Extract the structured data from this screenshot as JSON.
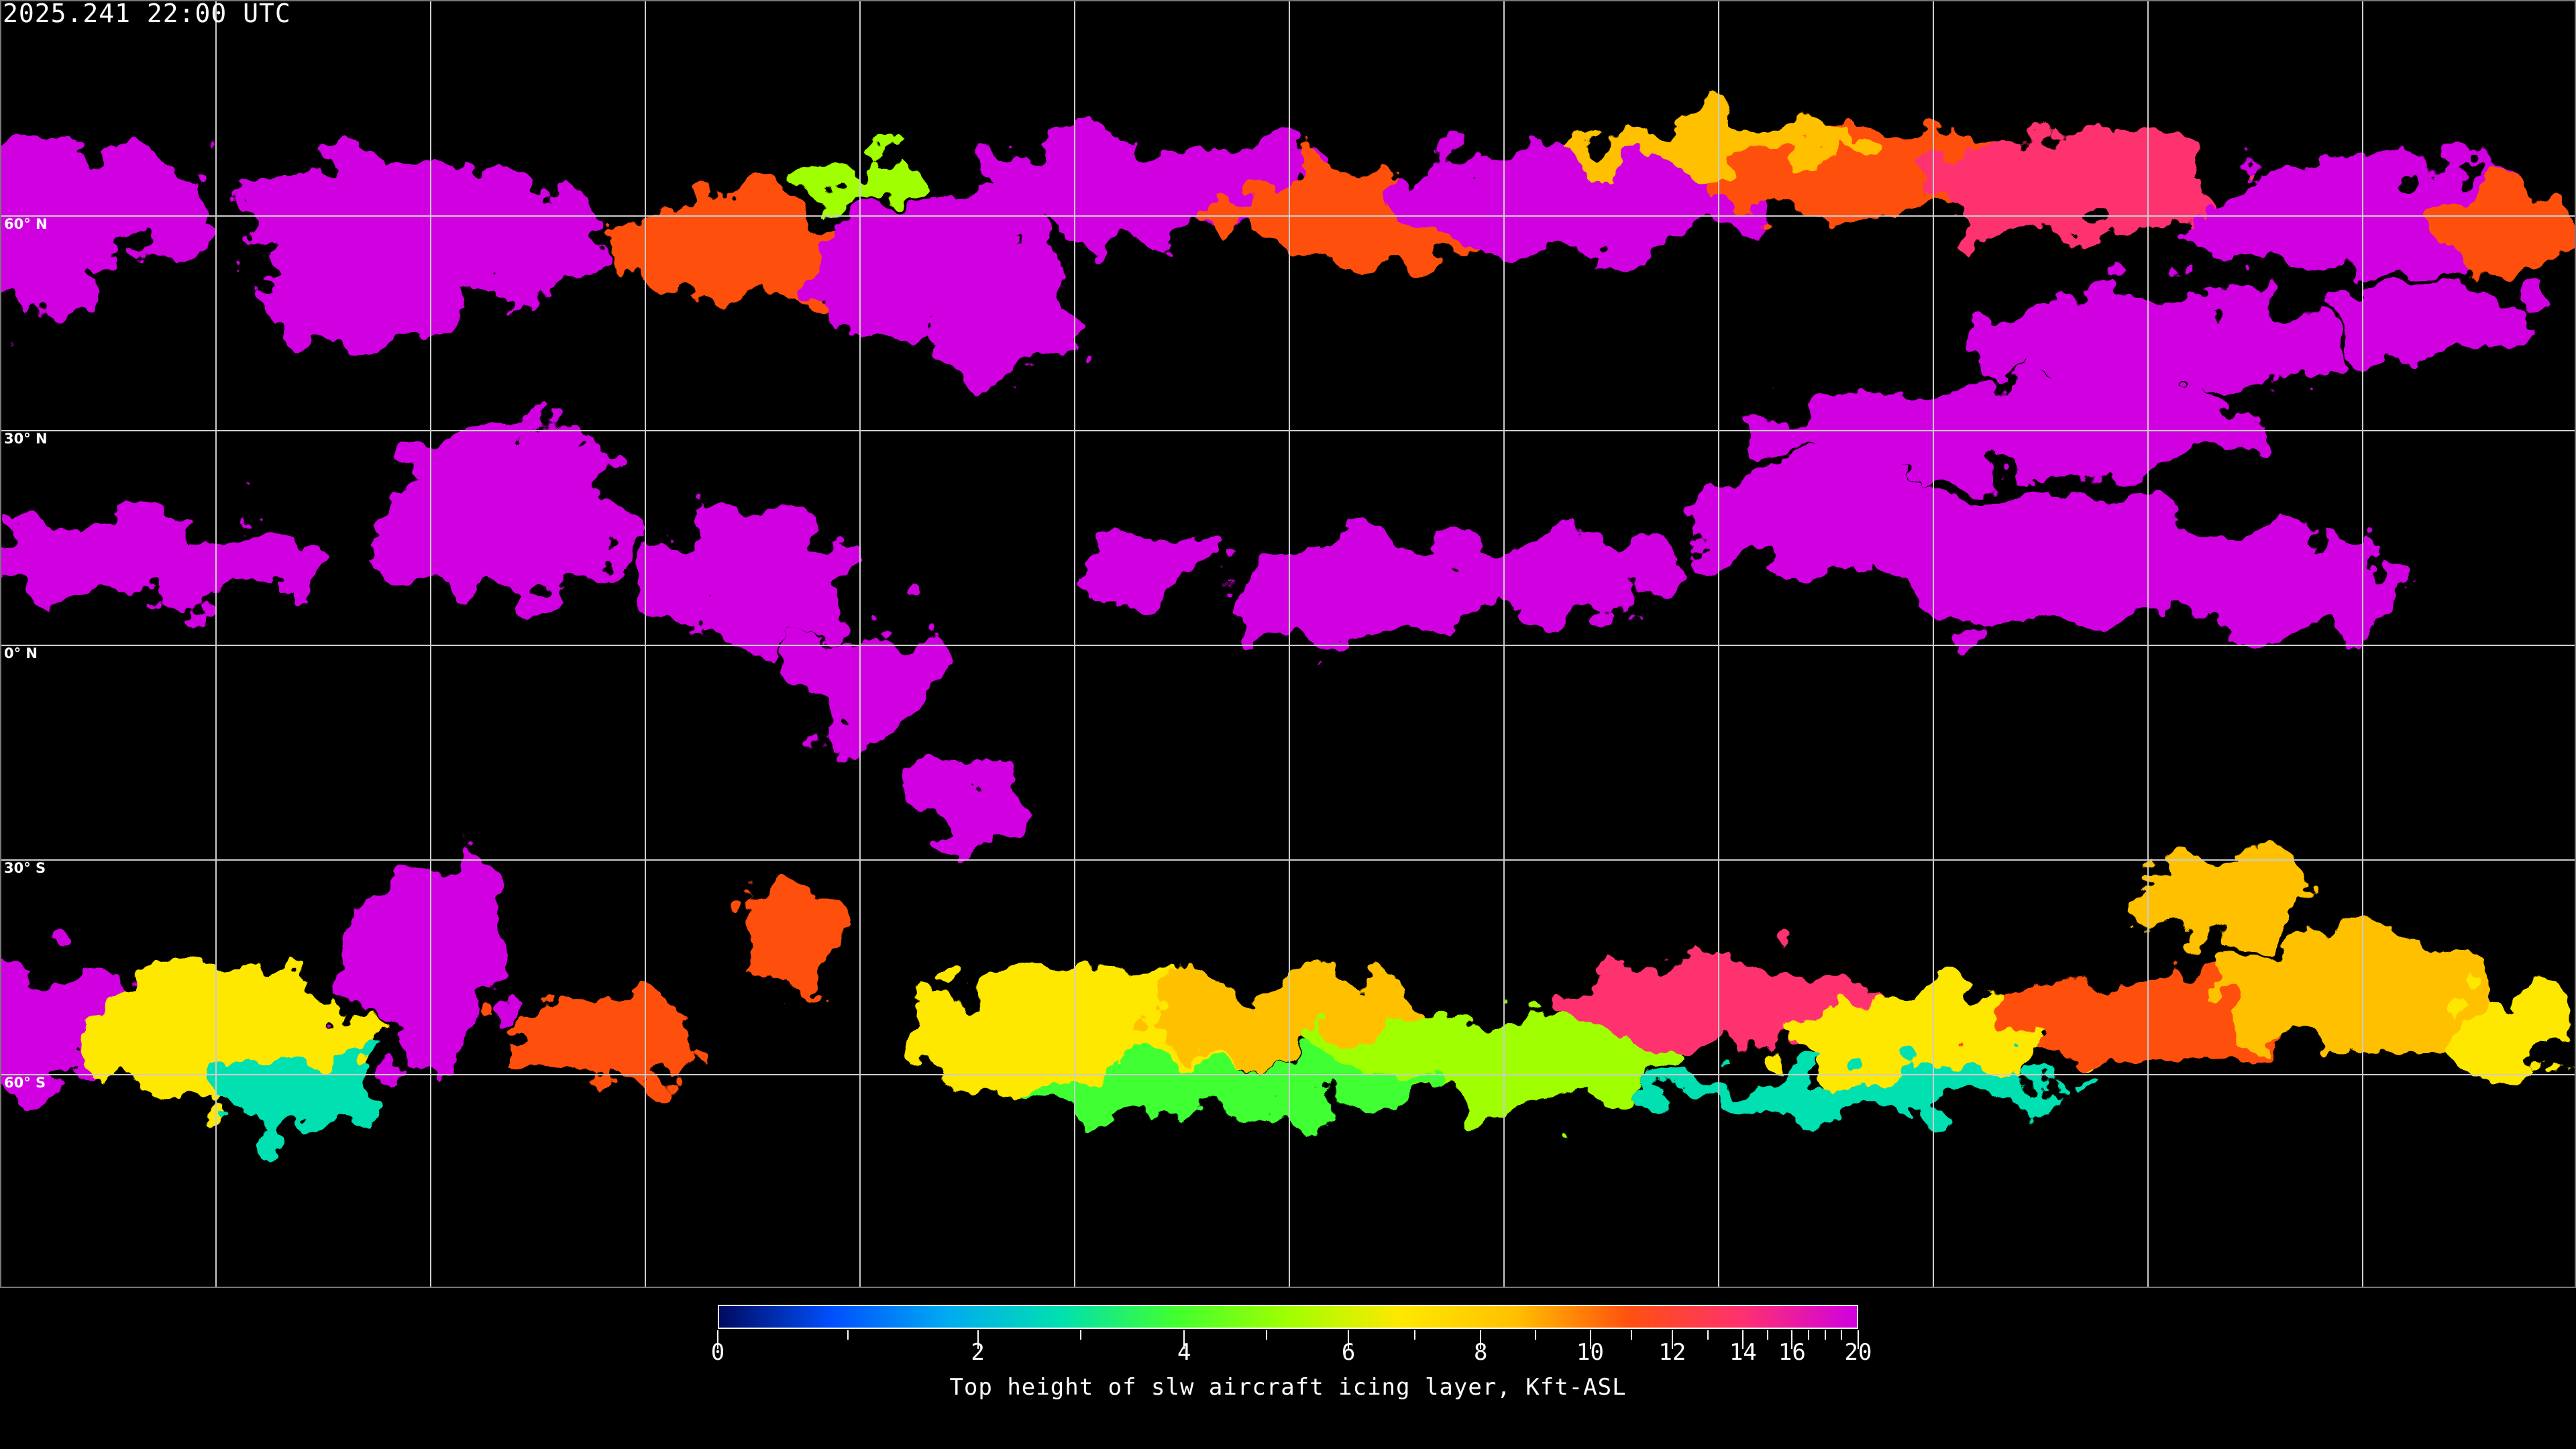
{
  "header": {
    "title": "2025.241 22:00 UTC"
  },
  "map": {
    "projection": "equirectangular",
    "graticule_spacing_deg": 30,
    "latitude_labels": [
      "60° N",
      "30° N",
      "0° N",
      "30° S",
      "60° S"
    ],
    "background_color": "#000000",
    "coastline_color": "#ffffff"
  },
  "colorbar": {
    "title": "Top height of slw aircraft icing layer, Kft-ASL",
    "range": [
      0,
      20
    ],
    "tick_labels": [
      "0",
      "2",
      "4",
      "6",
      "8",
      "10",
      "12",
      "14",
      "16",
      "20"
    ],
    "minor_ticks": [
      1,
      3,
      5,
      7,
      9,
      11,
      13,
      15,
      17,
      18,
      19
    ],
    "colors": [
      "#000a60",
      "#0050ff",
      "#00aaf0",
      "#00e0b0",
      "#40ff30",
      "#a0ff00",
      "#ffe800",
      "#ffc000",
      "#ff5010",
      "#ff3070",
      "#d000e0"
    ]
  }
}
